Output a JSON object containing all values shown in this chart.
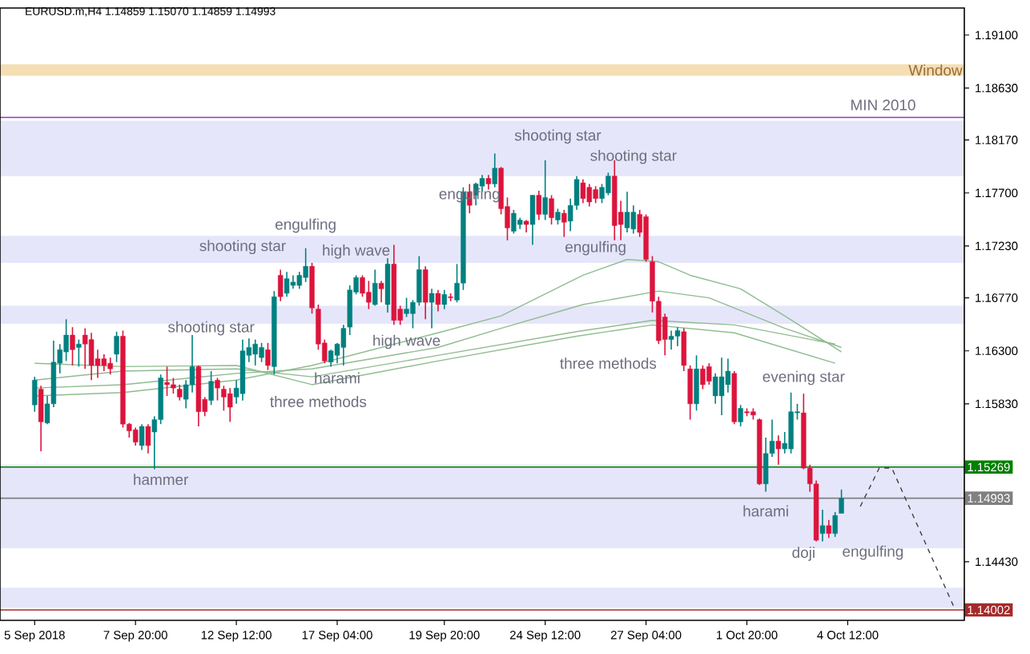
{
  "chart_data": {
    "type": "candlestick",
    "title": "EURUSD.m,H4  1.14859 1.15070 1.14859 1.14993",
    "categories": [
      "5 Sep 2018",
      null,
      null,
      null,
      null,
      null,
      null,
      null,
      null,
      null,
      null,
      null,
      null,
      null,
      null,
      null,
      "7 Sep 20:00",
      null,
      null,
      null,
      null,
      null,
      null,
      null,
      null,
      null,
      null,
      null,
      null,
      null,
      null,
      null,
      "12 Sep 12:00",
      null,
      null,
      null,
      null,
      null,
      null,
      null,
      null,
      null,
      null,
      null,
      null,
      null,
      null,
      null,
      "17 Sep 04:00",
      null,
      null,
      null,
      null,
      null,
      null,
      null,
      null,
      null,
      null,
      null,
      null,
      null,
      null,
      null,
      null,
      "19 Sep 20:00",
      null,
      null,
      null,
      null,
      null,
      null,
      null,
      null,
      null,
      null,
      null,
      null,
      null,
      null,
      null,
      "24 Sep 12:00",
      null,
      null,
      null,
      null,
      null,
      null,
      null,
      null,
      null,
      null,
      null,
      null,
      null,
      null,
      null,
      "27 Sep 04:00",
      null,
      null,
      null,
      null,
      null,
      null,
      null,
      null,
      null,
      null,
      null,
      null,
      null,
      null,
      null,
      "1 Oct 20:00",
      null,
      null,
      null,
      null,
      null,
      null,
      null,
      null,
      null,
      null,
      null,
      null,
      null,
      null,
      null,
      "4 Oct 12:00",
      null,
      null,
      null,
      null,
      null,
      null,
      null,
      null,
      null,
      null,
      null,
      null,
      null,
      null,
      null,
      null,
      null,
      null
    ],
    "ohlc": [
      [
        1.1582,
        1.1607,
        1.1576,
        1.1604
      ],
      [
        1.1596,
        1.1599,
        1.1541,
        1.1567
      ],
      [
        1.1566,
        1.159,
        1.1565,
        1.1583
      ],
      [
        1.1583,
        1.1639,
        1.158,
        1.162
      ],
      [
        1.1619,
        1.1636,
        1.161,
        1.1631
      ],
      [
        1.1629,
        1.1658,
        1.1621,
        1.1644
      ],
      [
        1.1644,
        1.1651,
        1.1617,
        1.1631
      ],
      [
        1.1633,
        1.164,
        1.1616,
        1.1636
      ],
      [
        1.1644,
        1.165,
        1.1614,
        1.1636
      ],
      [
        1.164,
        1.1646,
        1.1604,
        1.1617
      ],
      [
        1.1623,
        1.1631,
        1.1606,
        1.1617
      ],
      [
        1.1623,
        1.1627,
        1.1612,
        1.1617
      ],
      [
        1.1619,
        1.1624,
        1.1609,
        1.1614
      ],
      [
        1.1627,
        1.1647,
        1.162,
        1.1643
      ],
      [
        1.1643,
        1.1648,
        1.1562,
        1.1565
      ],
      [
        1.1565,
        1.1566,
        1.1553,
        1.1559
      ],
      [
        1.156,
        1.1562,
        1.1546,
        1.1549
      ],
      [
        1.1546,
        1.1565,
        1.1542,
        1.1563
      ],
      [
        1.1563,
        1.1565,
        1.1539,
        1.1546
      ],
      [
        1.1558,
        1.1572,
        1.1525,
        1.1569
      ],
      [
        1.1569,
        1.1609,
        1.1565,
        1.1606
      ],
      [
        1.1602,
        1.1616,
        1.159,
        1.16
      ],
      [
        1.16,
        1.1606,
        1.1592,
        1.1597
      ],
      [
        1.1596,
        1.16,
        1.1586,
        1.1589
      ],
      [
        1.1587,
        1.1604,
        1.1579,
        1.16
      ],
      [
        1.16,
        1.1644,
        1.1593,
        1.1616
      ],
      [
        1.1616,
        1.1617,
        1.1563,
        1.1576
      ],
      [
        1.1587,
        1.1589,
        1.1572,
        1.1576
      ],
      [
        1.1586,
        1.1612,
        1.1582,
        1.1603
      ],
      [
        1.1604,
        1.1606,
        1.1586,
        1.1597
      ],
      [
        1.1596,
        1.1599,
        1.1577,
        1.1589
      ],
      [
        1.1592,
        1.1597,
        1.1567,
        1.158
      ],
      [
        1.1589,
        1.1604,
        1.1583,
        1.1597
      ],
      [
        1.1592,
        1.164,
        1.1586,
        1.163
      ],
      [
        1.1626,
        1.1641,
        1.162,
        1.1633
      ],
      [
        1.1627,
        1.164,
        1.1617,
        1.1636
      ],
      [
        1.1624,
        1.1637,
        1.162,
        1.1633
      ],
      [
        1.1631,
        1.1637,
        1.1613,
        1.1617
      ],
      [
        1.1616,
        1.1683,
        1.1609,
        1.1678
      ],
      [
        1.1697,
        1.1702,
        1.1674,
        1.1678
      ],
      [
        1.1681,
        1.17,
        1.1678,
        1.1694
      ],
      [
        1.1688,
        1.1697,
        1.1685,
        1.1691
      ],
      [
        1.1688,
        1.17,
        1.1685,
        1.1697
      ],
      [
        1.1695,
        1.1721,
        1.1691,
        1.1705
      ],
      [
        1.1705,
        1.1708,
        1.1663,
        1.1668
      ],
      [
        1.1667,
        1.1671,
        1.1631,
        1.1636
      ],
      [
        1.1637,
        1.164,
        1.1619,
        1.1621
      ],
      [
        1.162,
        1.1631,
        1.1616,
        1.163
      ],
      [
        1.1626,
        1.1637,
        1.1619,
        1.1636
      ],
      [
        1.1633,
        1.1653,
        1.1617,
        1.165
      ],
      [
        1.1651,
        1.1688,
        1.1644,
        1.1684
      ],
      [
        1.1682,
        1.1697,
        1.168,
        1.1695
      ],
      [
        1.1695,
        1.1697,
        1.1678,
        1.1681
      ],
      [
        1.1682,
        1.1692,
        1.1667,
        1.1673
      ],
      [
        1.1671,
        1.1702,
        1.167,
        1.169
      ],
      [
        1.169,
        1.1692,
        1.1673,
        1.1685
      ],
      [
        1.1671,
        1.1712,
        1.1664,
        1.1707
      ],
      [
        1.1707,
        1.1724,
        1.1653,
        1.1657
      ],
      [
        1.1667,
        1.167,
        1.1653,
        1.1657
      ],
      [
        1.1663,
        1.1677,
        1.166,
        1.1667
      ],
      [
        1.1663,
        1.1675,
        1.165,
        1.1673
      ],
      [
        1.1673,
        1.1714,
        1.167,
        1.1702
      ],
      [
        1.1702,
        1.1705,
        1.1658,
        1.1673
      ],
      [
        1.1673,
        1.1685,
        1.165,
        1.1681
      ],
      [
        1.1681,
        1.1684,
        1.1665,
        1.1671
      ],
      [
        1.1671,
        1.1684,
        1.1667,
        1.168
      ],
      [
        1.1678,
        1.1681,
        1.1674,
        1.1677
      ],
      [
        1.1675,
        1.1707,
        1.1673,
        1.169
      ],
      [
        1.169,
        1.1775,
        1.1684,
        1.1771
      ],
      [
        1.1771,
        1.1778,
        1.1752,
        1.1759
      ],
      [
        1.1768,
        1.1779,
        1.1759,
        1.1778
      ],
      [
        1.1776,
        1.1786,
        1.1771,
        1.1783
      ],
      [
        1.1783,
        1.1786,
        1.1773,
        1.1778
      ],
      [
        1.1778,
        1.1805,
        1.1775,
        1.1792
      ],
      [
        1.1792,
        1.1793,
        1.1751,
        1.1756
      ],
      [
        1.1758,
        1.1766,
        1.1728,
        1.1739
      ],
      [
        1.1736,
        1.1755,
        1.1734,
        1.1752
      ],
      [
        1.1742,
        1.1748,
        1.1738,
        1.1746
      ],
      [
        1.1745,
        1.1746,
        1.1735,
        1.1742
      ],
      [
        1.1742,
        1.1768,
        1.1724,
        1.1768
      ],
      [
        1.1768,
        1.1772,
        1.1746,
        1.1751
      ],
      [
        1.1751,
        1.1799,
        1.1746,
        1.1766
      ],
      [
        1.1765,
        1.1768,
        1.1742,
        1.1748
      ],
      [
        1.1746,
        1.1756,
        1.1742,
        1.1753
      ],
      [
        1.1752,
        1.1755,
        1.1731,
        1.1744
      ],
      [
        1.1745,
        1.1765,
        1.1736,
        1.1759
      ],
      [
        1.1759,
        1.1785,
        1.1755,
        1.1782
      ],
      [
        1.1779,
        1.1782,
        1.1761,
        1.1765
      ],
      [
        1.1775,
        1.1778,
        1.1758,
        1.1762
      ],
      [
        1.1773,
        1.1776,
        1.1761,
        1.1765
      ],
      [
        1.1765,
        1.1778,
        1.1761,
        1.1775
      ],
      [
        1.177,
        1.1788,
        1.1768,
        1.1785
      ],
      [
        1.1785,
        1.1799,
        1.1728,
        1.1741
      ],
      [
        1.1753,
        1.1763,
        1.1728,
        1.1742
      ],
      [
        1.1739,
        1.1771,
        1.1735,
        1.1753
      ],
      [
        1.1738,
        1.1759,
        1.1734,
        1.1753
      ],
      [
        1.1751,
        1.1755,
        1.1731,
        1.1735
      ],
      [
        1.1749,
        1.1751,
        1.1709,
        1.1711
      ],
      [
        1.1709,
        1.1714,
        1.1664,
        1.1674
      ],
      [
        1.1674,
        1.1678,
        1.1636,
        1.1639
      ],
      [
        1.166,
        1.1663,
        1.1626,
        1.164
      ],
      [
        1.164,
        1.1648,
        1.1631,
        1.1643
      ],
      [
        1.1643,
        1.1651,
        1.1634,
        1.1648
      ],
      [
        1.1647,
        1.165,
        1.1612,
        1.1617
      ],
      [
        1.1614,
        1.1617,
        1.1569,
        1.1583
      ],
      [
        1.1583,
        1.1626,
        1.1577,
        1.1614
      ],
      [
        1.1614,
        1.1617,
        1.1596,
        1.16
      ],
      [
        1.1616,
        1.1619,
        1.16,
        1.1603
      ],
      [
        1.159,
        1.161,
        1.1583,
        1.1607
      ],
      [
        1.159,
        1.1624,
        1.1573,
        1.1607
      ],
      [
        1.16,
        1.1623,
        1.1593,
        1.1612
      ],
      [
        1.161,
        1.1612,
        1.1565,
        1.1567
      ],
      [
        1.1567,
        1.1582,
        1.1563,
        1.1579
      ],
      [
        1.1576,
        1.1579,
        1.1572,
        1.1575
      ],
      [
        1.1576,
        1.1579,
        1.1569,
        1.1573
      ],
      [
        1.1569,
        1.157,
        1.1511,
        1.1512
      ],
      [
        1.1512,
        1.1553,
        1.1505,
        1.1539
      ],
      [
        1.1539,
        1.1569,
        1.1536,
        1.155
      ],
      [
        1.155,
        1.1555,
        1.1529,
        1.1543
      ],
      [
        1.1543,
        1.1558,
        1.1539,
        1.1548
      ],
      [
        1.1543,
        1.1593,
        1.1539,
        1.1576
      ],
      [
        1.1575,
        1.1583,
        1.1569,
        1.1576
      ],
      [
        1.1575,
        1.1592,
        1.1525,
        1.1526
      ],
      [
        1.1526,
        1.1529,
        1.1505,
        1.1512
      ],
      [
        1.1512,
        1.1515,
        1.1461,
        1.1462
      ],
      [
        1.1468,
        1.1489,
        1.1461,
        1.1475
      ],
      [
        1.1475,
        1.148,
        1.1464,
        1.1468
      ],
      [
        1.1468,
        1.1487,
        1.1465,
        1.1484
      ],
      [
        1.14859,
        1.1507,
        1.14859,
        1.14993
      ],
      null,
      null,
      null,
      null,
      null,
      null,
      null,
      null,
      null,
      null,
      null,
      null,
      null,
      null,
      null,
      null,
      null,
      null,
      null
    ],
    "colors": [
      "#008080",
      "#dc143c",
      "#008080",
      "#008080",
      "#008080",
      "#008080",
      "#dc143c",
      "#008080",
      "#dc143c",
      "#dc143c",
      "#dc143c",
      "#dc143c",
      "#dc143c",
      "#008080",
      "#dc143c",
      "#dc143c",
      "#dc143c",
      "#008080",
      "#dc143c",
      "#008080",
      "#008080",
      "#dc143c",
      "#dc143c",
      "#dc143c",
      "#008080",
      "#008080",
      "#dc143c",
      "#dc143c",
      "#008080",
      "#dc143c",
      "#dc143c",
      "#dc143c",
      "#008080",
      "#008080",
      "#008080",
      "#008080",
      "#008080",
      "#dc143c",
      "#008080",
      "#dc143c",
      "#008080",
      "#008080",
      "#008080",
      "#008080",
      "#dc143c",
      "#dc143c",
      "#dc143c",
      "#008080",
      "#008080",
      "#008080",
      "#008080",
      "#008080",
      "#dc143c",
      "#dc143c",
      "#008080",
      "#dc143c",
      "#008080",
      "#dc143c",
      "#dc143c",
      "#008080",
      "#008080",
      "#008080",
      "#dc143c",
      "#008080",
      "#dc143c",
      "#008080",
      "#dc143c",
      "#008080",
      "#008080",
      "#dc143c",
      "#008080",
      "#008080",
      "#dc143c",
      "#008080",
      "#dc143c",
      "#dc143c",
      "#008080",
      "#008080",
      "#dc143c",
      "#008080",
      "#dc143c",
      "#008080",
      "#dc143c",
      "#008080",
      "#dc143c",
      "#008080",
      "#008080",
      "#dc143c",
      "#dc143c",
      "#dc143c",
      "#008080",
      "#008080",
      "#dc143c",
      "#dc143c",
      "#008080",
      "#008080",
      "#dc143c",
      "#dc143c",
      "#dc143c",
      "#dc143c",
      "#dc143c",
      "#008080",
      "#008080",
      "#dc143c",
      "#dc143c",
      "#008080",
      "#dc143c",
      "#dc143c",
      "#008080",
      "#008080",
      "#008080",
      "#dc143c",
      "#008080",
      "#dc143c",
      "#dc143c",
      "#dc143c",
      "#008080",
      "#008080",
      "#dc143c",
      "#008080",
      "#008080",
      "#008080",
      "#dc143c",
      "#dc143c",
      "#dc143c",
      "#008080",
      "#dc143c",
      "#008080",
      "#008080",
      null,
      null,
      null,
      null,
      null,
      null,
      null,
      null,
      null,
      null,
      null,
      null,
      null,
      null,
      null,
      null,
      null,
      null,
      null
    ],
    "series": [
      {
        "type": "line",
        "color": "#8fbc8f",
        "values": [
          1.159,
          null,
          null,
          null,
          null,
          null,
          null,
          null,
          null,
          null,
          null,
          null,
          null,
          null,
          1.1593,
          null,
          null,
          null,
          null,
          null,
          null,
          null,
          null,
          null,
          null,
          null,
          null,
          null,
          null,
          null,
          null,
          null,
          1.1604,
          null,
          null,
          null,
          null,
          null,
          null,
          null,
          null,
          null,
          null,
          null,
          1.1617,
          null,
          null,
          null,
          null,
          null,
          null,
          null,
          null,
          null,
          null,
          null,
          null,
          null,
          null,
          null,
          null,
          null,
          null,
          null,
          1.1646,
          null,
          null,
          null,
          null,
          null,
          null,
          null,
          null,
          null,
          1.1661,
          null,
          null,
          null,
          null,
          null,
          null,
          null,
          null,
          null,
          null,
          null,
          null,
          1.1697,
          null,
          null,
          null,
          null,
          null,
          null,
          1.1711,
          null,
          null,
          null,
          null,
          1.1709,
          null,
          null,
          null,
          null,
          1.1697,
          null,
          null,
          null,
          null,
          null,
          null,
          null,
          1.1685,
          null,
          null,
          null,
          null,
          null,
          null,
          1.1661,
          null,
          null,
          null,
          null,
          null,
          null,
          null,
          null,
          1.1629,
          null,
          null,
          null,
          null,
          null,
          null,
          null,
          null,
          null,
          null,
          null,
          null,
          null,
          null,
          null,
          null,
          null,
          null,
          null
        ]
      },
      {
        "type": "line",
        "color": "#8fbc8f",
        "values": [
          1.1597,
          null,
          null,
          null,
          null,
          null,
          null,
          null,
          null,
          null,
          null,
          null,
          null,
          null,
          1.16,
          null,
          null,
          null,
          null,
          null,
          null,
          null,
          null,
          null,
          null,
          null,
          null,
          null,
          null,
          null,
          null,
          null,
          1.161,
          null,
          null,
          null,
          null,
          null,
          null,
          null,
          null,
          null,
          null,
          null,
          1.1614,
          null,
          null,
          null,
          null,
          null,
          null,
          null,
          null,
          null,
          null,
          null,
          null,
          null,
          null,
          null,
          null,
          null,
          null,
          null,
          1.1633,
          null,
          null,
          null,
          null,
          null,
          null,
          null,
          null,
          null,
          1.165,
          null,
          null,
          null,
          null,
          null,
          null,
          null,
          null,
          null,
          null,
          null,
          null,
          1.1671,
          null,
          null,
          null,
          null,
          null,
          null,
          null,
          null,
          null,
          null,
          null,
          1.1683,
          null,
          null,
          null,
          null,
          null,
          null,
          null,
          1.1677,
          null,
          null,
          null,
          null,
          null,
          null,
          null,
          null,
          null,
          null,
          null,
          1.165,
          null,
          null,
          null,
          null,
          null,
          null,
          null,
          null,
          1.1633,
          null,
          null,
          null,
          null,
          null,
          null,
          null,
          null,
          null,
          null,
          null,
          null,
          null,
          null,
          null,
          null,
          null,
          null,
          null
        ]
      },
      {
        "type": "line",
        "color": "#8fbc8f",
        "values": [
          1.1604,
          null,
          null,
          null,
          null,
          null,
          null,
          null,
          null,
          null,
          null,
          null,
          null,
          null,
          1.1612,
          null,
          null,
          null,
          null,
          null,
          null,
          null,
          null,
          null,
          null,
          null,
          null,
          null,
          null,
          null,
          null,
          null,
          1.1614,
          null,
          null,
          null,
          null,
          null,
          null,
          null,
          null,
          null,
          null,
          null,
          1.1607,
          null,
          null,
          null,
          null,
          null,
          null,
          null,
          null,
          null,
          null,
          null,
          null,
          null,
          null,
          null,
          null,
          null,
          null,
          null,
          1.1626,
          null,
          null,
          null,
          null,
          null,
          null,
          null,
          null,
          null,
          null,
          null,
          null,
          null,
          null,
          null,
          null,
          null,
          null,
          null,
          null,
          null,
          1.1647,
          null,
          null,
          null,
          null,
          null,
          null,
          null,
          null,
          null,
          null,
          null,
          1.1657,
          null,
          null,
          null,
          null,
          null,
          null,
          null,
          null,
          null,
          null,
          null,
          null,
          1.1653,
          null,
          null,
          null,
          null,
          null,
          null,
          null,
          null,
          null,
          null,
          null,
          null,
          null,
          null,
          null,
          1.1636,
          null,
          null,
          null,
          null,
          null,
          null,
          null,
          null,
          null,
          null,
          null,
          null,
          null,
          null,
          null,
          null,
          null,
          null,
          null,
          null
        ]
      },
      {
        "type": "line",
        "color": "#8fbc8f",
        "values": [
          1.1619,
          null,
          null,
          null,
          null,
          null,
          null,
          null,
          null,
          null,
          null,
          null,
          null,
          null,
          1.1616,
          null,
          null,
          null,
          null,
          null,
          null,
          null,
          null,
          null,
          null,
          null,
          null,
          null,
          null,
          null,
          null,
          null,
          1.1617,
          null,
          null,
          null,
          null,
          null,
          null,
          null,
          null,
          null,
          null,
          null,
          1.16,
          null,
          null,
          null,
          null,
          null,
          null,
          null,
          null,
          null,
          null,
          null,
          null,
          null,
          null,
          null,
          null,
          null,
          null,
          null,
          1.1621,
          null,
          null,
          null,
          null,
          null,
          null,
          null,
          null,
          null,
          null,
          null,
          null,
          null,
          null,
          null,
          null,
          null,
          null,
          null,
          null,
          null,
          1.1643,
          null,
          null,
          null,
          null,
          null,
          null,
          null,
          null,
          null,
          null,
          null,
          1.1653,
          null,
          null,
          null,
          null,
          null,
          null,
          null,
          null,
          null,
          null,
          null,
          null,
          1.1646,
          null,
          null,
          null,
          null,
          null,
          null,
          null,
          null,
          null,
          null,
          null,
          null,
          null,
          null,
          null,
          1.1619,
          null,
          null,
          null,
          null,
          null,
          null,
          null,
          null,
          null,
          null,
          null,
          null,
          null,
          null,
          null,
          null,
          null,
          null,
          null,
          null
        ]
      },
      {
        "type": "line",
        "color": "#404040",
        "line_style": "dashed",
        "values": [
          null,
          null,
          null,
          null,
          null,
          null,
          null,
          null,
          null,
          null,
          null,
          null,
          null,
          null,
          null,
          null,
          null,
          null,
          null,
          null,
          null,
          null,
          null,
          null,
          null,
          null,
          null,
          null,
          null,
          null,
          null,
          null,
          null,
          null,
          null,
          null,
          null,
          null,
          null,
          null,
          null,
          null,
          null,
          null,
          null,
          null,
          null,
          null,
          null,
          null,
          null,
          null,
          null,
          null,
          null,
          null,
          null,
          null,
          null,
          null,
          null,
          null,
          null,
          null,
          null,
          null,
          null,
          null,
          null,
          null,
          null,
          null,
          null,
          null,
          null,
          null,
          null,
          null,
          null,
          null,
          null,
          null,
          null,
          null,
          null,
          null,
          null,
          null,
          null,
          null,
          null,
          null,
          null,
          null,
          null,
          null,
          null,
          null,
          null,
          null,
          null,
          null,
          null,
          null,
          null,
          null,
          null,
          null,
          null,
          null,
          null,
          null,
          null,
          null,
          null,
          null,
          null,
          null,
          null,
          null,
          null,
          null,
          null,
          null,
          null,
          null,
          null,
          null,
          null,
          null,
          null,
          1.1492,
          null,
          null,
          1.1526,
          null,
          1.1526,
          null,
          null,
          null,
          null,
          null,
          null,
          null,
          null,
          null,
          1.1401,
          null
        ]
      }
    ],
    "ylim": [
      1.1391,
      1.1934
    ],
    "yticks": [
      {
        "value": 1.191,
        "label": "1.19100"
      },
      {
        "value": 1.1863,
        "label": "1.18630"
      },
      {
        "value": 1.1817,
        "label": "1.18170"
      },
      {
        "value": 1.177,
        "label": "1.17700"
      },
      {
        "value": 1.1723,
        "label": "1.17230"
      },
      {
        "value": 1.1677,
        "label": "1.16770"
      },
      {
        "value": 1.163,
        "label": "1.16300"
      },
      {
        "value": 1.1583,
        "label": "1.15830"
      },
      {
        "value": 1.1443,
        "label": "1.14430"
      }
    ],
    "bands": [
      {
        "axis": "y",
        "from": 1.1874,
        "to": 1.1884,
        "label": "Window",
        "color": "#f5deb3"
      },
      {
        "axis": "y",
        "from": 1.1785,
        "to": 1.1834,
        "color": "#e6e6fa"
      },
      {
        "axis": "y",
        "from": 1.1708,
        "to": 1.1732,
        "color": "#e6e6fa"
      },
      {
        "axis": "y",
        "from": 1.1654,
        "to": 1.167,
        "color": "#e6e6fa"
      },
      {
        "axis": "y",
        "from": 1.1455,
        "to": 1.1529,
        "color": "#e6e6fa"
      },
      {
        "axis": "y",
        "from": 1.1402,
        "to": 1.142,
        "color": "#e6e6fa"
      }
    ],
    "ref_lines": [
      {
        "axis": "y",
        "value": 1.1837,
        "color": "#9932cc"
      },
      {
        "axis": "y",
        "value": 1.15269,
        "label": "1.15269",
        "color": "#008000"
      },
      {
        "axis": "y",
        "value": 1.14993,
        "label": "1.14993",
        "color": "#808080"
      },
      {
        "axis": "y",
        "value": 1.14002,
        "label": "1.14002",
        "color": "#a52a2a"
      }
    ],
    "annotations": [
      "MIN 2010",
      "hammer",
      "shooting star",
      "three methods",
      {
        "text": "harami",
        "y": 1.1606
      },
      "high wave",
      "shooting star",
      "engulfing",
      "high wave",
      "engulfing",
      "shooting star",
      "shooting star",
      "engulfing",
      "three methods",
      "evening star",
      "harami",
      "doji",
      "engulfing"
    ]
  }
}
